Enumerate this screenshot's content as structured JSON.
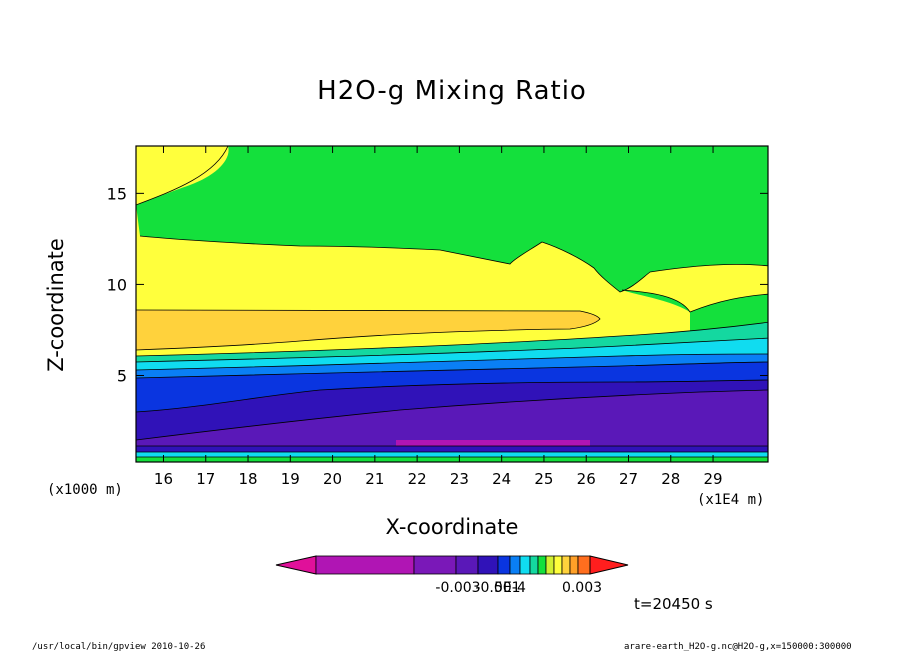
{
  "chart_data": {
    "type": "contour",
    "title": "H2O-g Mixing Ratio",
    "xlabel": "X-coordinate",
    "ylabel": "Z-coordinate",
    "x_unit_label": "(x1E4 m)",
    "y_unit_label": "(x1000 m)",
    "x_ticks": [
      16,
      17,
      18,
      19,
      20,
      21,
      22,
      23,
      24,
      25,
      26,
      27,
      28,
      29
    ],
    "y_ticks": [
      5,
      10,
      15
    ],
    "xlim": [
      15.35,
      30.3
    ],
    "ylim": [
      0.25,
      17.6
    ],
    "colorbar": {
      "tick_labels": [
        "-0.003",
        "-0.001",
        "5E-4",
        "0.003"
      ],
      "colors": [
        "#e0109a",
        "#b015b4",
        "#7a18b8",
        "#5a18b8",
        "#3012b8",
        "#0a35e0",
        "#0a7ff5",
        "#10dcf0",
        "#14d8a0",
        "#14e03c",
        "#d2f032",
        "#ffff3c",
        "#ffd23c",
        "#ffa028",
        "#ff6e1e",
        "#ff1e1e"
      ]
    },
    "colors": {
      "upper_yellow": "#ffff3c",
      "green": "#14e03c",
      "orange": "#ffd23c",
      "teal": "#14d8a0",
      "cyan": "#10dcf0",
      "light_blue": "#0a7ff5",
      "blue": "#0a35e0",
      "dark_blue": "#3012b8",
      "purple": "#5a18b8",
      "violet": "#b015b4"
    }
  },
  "time_label": "t=20450 s",
  "footer": {
    "left": "/usr/local/bin/gpview  2010-10-26",
    "right": "arare-earth_H2O-g.nc@H2O-g,x=150000:300000"
  }
}
